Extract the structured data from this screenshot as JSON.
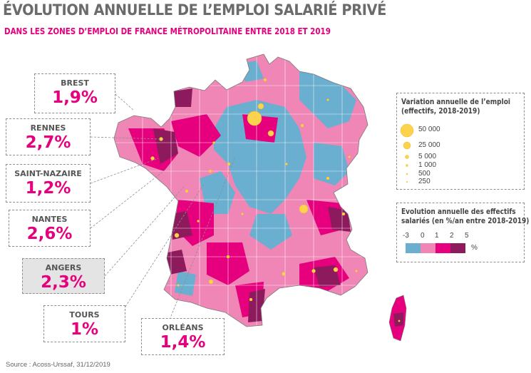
{
  "title": "ÉVOLUTION ANNUELLE DE L’EMPLOI SALARIÉ PRIVÉ",
  "subtitle": "DANS LES ZONES D’EMPLOI DE FRANCE MÉTROPOLITAINE ENTRE 2018 ET 2019",
  "callouts": [
    {
      "name": "BREST",
      "value": "1,9%"
    },
    {
      "name": "RENNES",
      "value": "2,7%"
    },
    {
      "name": "SAINT-NAZAIRE",
      "value": "1,2%"
    },
    {
      "name": "NANTES",
      "value": "2,6%"
    },
    {
      "name": "ANGERS",
      "value": "2,3%",
      "highlight": true
    },
    {
      "name": "TOURS",
      "value": "1%"
    },
    {
      "name": "ORLÉANS",
      "value": "1,4%"
    }
  ],
  "legend_size": {
    "title_line1": "Variation annuelle de l’emploi",
    "title_line2": "(effectifs, 2018-2019)",
    "items": [
      "50 000",
      "25 000",
      "5 000",
      "1 000",
      "500",
      "250"
    ]
  },
  "legend_color": {
    "title_line1": "Evolution annuelle des effectifs",
    "title_line2": "salariés (en %/an entre 2018-2019)",
    "ticks": [
      "-3",
      "0",
      "1",
      "2",
      "5"
    ],
    "unit": "%",
    "colors": [
      "#6aaed0",
      "#ef86b6",
      "#e6007e",
      "#8c1a5c"
    ]
  },
  "source": "Source : Acoss-Urssaf, 31/12/2019"
}
